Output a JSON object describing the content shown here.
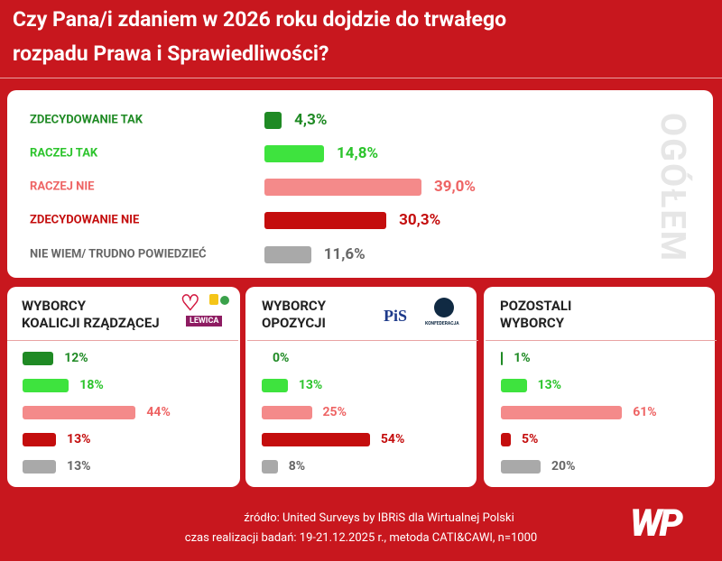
{
  "title": [
    "Czy Pana/i zdaniem w 2026 roku dojdzie do trwałego",
    "rozpadu Prawa i Sprawiedliwości?"
  ],
  "chart_data": [
    {
      "type": "bar",
      "orientation": "horizontal",
      "side_label": "OGÓŁEM",
      "categories": [
        "ZDECYDOWANIE TAK",
        "RACZEJ TAK",
        "RACZEJ NIE",
        "ZDECYDOWANIE NIE",
        "NIE WIEM/ TRUDNO POWIEDZIEĆ"
      ],
      "values": [
        4.3,
        14.8,
        39.0,
        30.3,
        11.6
      ],
      "value_labels": [
        "4,3%",
        "14,8%",
        "39,0%",
        "30,3%",
        "11,6%"
      ],
      "colors": [
        "#1f8a24",
        "#3ee33e",
        "#f48a8a",
        "#c40d0d",
        "#a9a9a9"
      ],
      "label_colors": [
        "#1f8a24",
        "#2cc42c",
        "#ee6464",
        "#c40d0d",
        "#666666"
      ]
    },
    {
      "type": "bar",
      "orientation": "horizontal",
      "title": [
        "WYBORCY",
        "KOALICJI RZĄDZĄCEJ"
      ],
      "logos": [
        "LEWICA"
      ],
      "categories": [
        null,
        null,
        null,
        null,
        null
      ],
      "values": [
        12,
        18,
        44,
        13,
        13
      ],
      "value_labels": [
        "12%",
        "18%",
        "44%",
        "13%",
        "13%"
      ],
      "colors": [
        "#1f8a24",
        "#3ee33e",
        "#f48a8a",
        "#c40d0d",
        "#a9a9a9"
      ],
      "label_colors": [
        "#1f8a24",
        "#2cc42c",
        "#ee6464",
        "#c40d0d",
        "#666666"
      ]
    },
    {
      "type": "bar",
      "orientation": "horizontal",
      "title": [
        "WYBORCY",
        "OPOZYCJI"
      ],
      "logos": [
        "PiS",
        "KONFEDERACJA"
      ],
      "categories": [
        null,
        null,
        null,
        null,
        null
      ],
      "values": [
        0,
        13,
        25,
        54,
        8
      ],
      "value_labels": [
        "0%",
        "13%",
        "25%",
        "54%",
        "8%"
      ],
      "colors": [
        "#1f8a24",
        "#3ee33e",
        "#f48a8a",
        "#c40d0d",
        "#a9a9a9"
      ],
      "label_colors": [
        "#1f8a24",
        "#2cc42c",
        "#ee6464",
        "#c40d0d",
        "#666666"
      ]
    },
    {
      "type": "bar",
      "orientation": "horizontal",
      "title": [
        "POZOSTALI",
        "WYBORCY"
      ],
      "categories": [
        null,
        null,
        null,
        null,
        null
      ],
      "values": [
        1,
        13,
        61,
        5,
        20
      ],
      "value_labels": [
        "1%",
        "13%",
        "61%",
        "5%",
        "20%"
      ],
      "colors": [
        "#1f8a24",
        "#3ee33e",
        "#f48a8a",
        "#c40d0d",
        "#a9a9a9"
      ],
      "label_colors": [
        "#1f8a24",
        "#2cc42c",
        "#ee6464",
        "#c40d0d",
        "#666666"
      ]
    }
  ],
  "source": "źródło: United Surveys by IBRiS dla Wirtualnej Polski",
  "fieldwork": "czas realizacji badań: 19-21.12.2025 r., metoda CATI&CAWI, n=1000",
  "logo": "WP"
}
